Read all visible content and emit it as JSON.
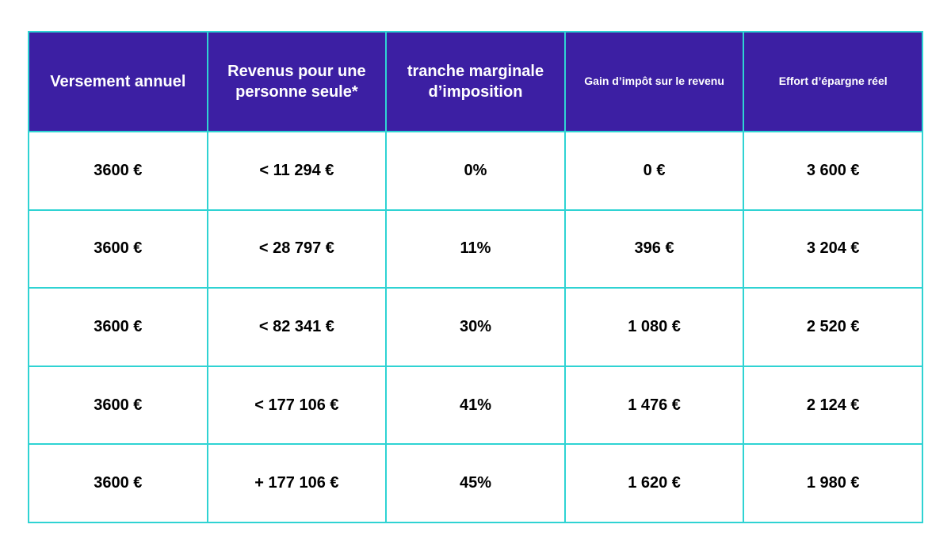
{
  "table": {
    "headers": [
      "Versement annuel",
      "Revenus pour une personne seule*",
      "tranche marginale d’imposition",
      "Gain d’impôt sur le revenu",
      "Effort d’épargne réel"
    ],
    "rows": [
      [
        "3600 €",
        "< 11 294 €",
        "0%",
        "0 €",
        "3 600 €"
      ],
      [
        "3600 €",
        "< 28 797 €",
        "11%",
        "396 €",
        "3 204 €"
      ],
      [
        "3600 €",
        "< 82 341 €",
        "30%",
        "1 080 €",
        "2 520 €"
      ],
      [
        "3600 €",
        "< 177 106 €",
        "41%",
        "1 476 €",
        "2 124 €"
      ],
      [
        "3600 €",
        "+ 177 106 €",
        "45%",
        "1 620 €",
        "1 980 €"
      ]
    ]
  },
  "colors": {
    "header_background": "#3c1fa3",
    "border": "#2fd3d3",
    "header_text": "#ffffff",
    "body_text": "#000000"
  }
}
